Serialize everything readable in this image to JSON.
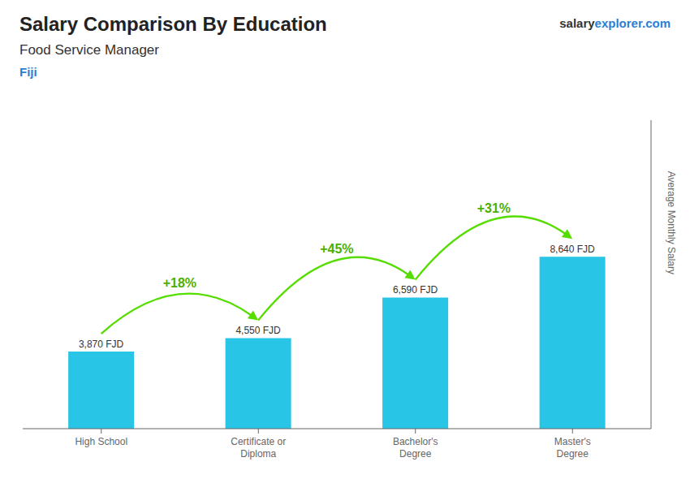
{
  "chart_data": {
    "type": "bar",
    "title": "Salary Comparison By Education",
    "subtitle": "Food Service Manager",
    "ylabel": "Average Monthly Salary",
    "categories": [
      "High School",
      "Certificate or\nDiploma",
      "Bachelor's\nDegree",
      "Master's\nDegree"
    ],
    "values": [
      3870,
      4550,
      6590,
      8640
    ],
    "value_labels": [
      "3,870 FJD",
      "4,550 FJD",
      "6,590 FJD",
      "8,640 FJD"
    ],
    "data_labels": true,
    "color": "#29c5e6",
    "ylim": [
      0,
      15500
    ],
    "tick_labels": "x",
    "grid": false,
    "annotations": [
      {
        "text": "Fiji"
      },
      {
        "text": "salary"
      },
      {
        "text": "explorer.com"
      },
      {
        "text": "+18%",
        "from": "High School",
        "to": "Certificate or\nDiploma"
      },
      {
        "text": "+45%",
        "from": "Certificate or\nDiploma",
        "to": "Bachelor's\nDegree"
      },
      {
        "text": "+31%",
        "from": "Bachelor's\nDegree",
        "to": "Master's\nDegree"
      }
    ]
  }
}
